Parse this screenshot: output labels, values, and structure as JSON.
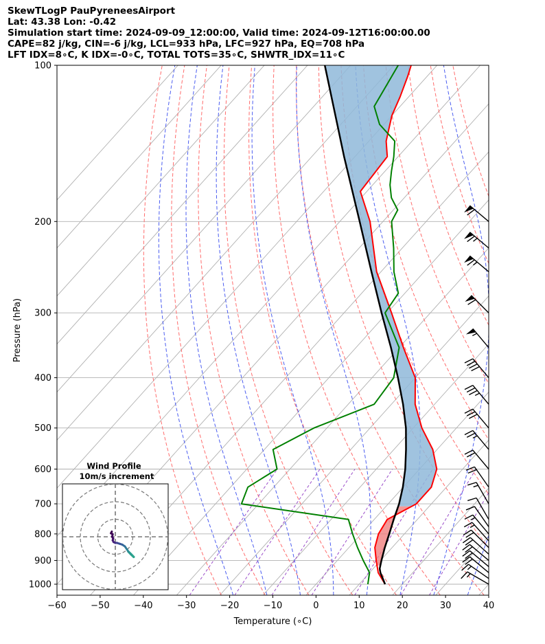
{
  "header": {
    "line1": "SkewTLogP PauPyreneesAirport",
    "line2": "Lat: 43.38   Lon: -0.42",
    "line3": "Simulation start time: 2024-09-09_12:00:00, Valid time: 2024-09-12T16:00:00.00",
    "line4": "CAPE=82 j/kg, CIN=-6 j/kg, LCL=933 hPa, LFC=927 hPa, EQ=708 hPa",
    "line5": "LFT IDX=8∘C, K IDX=-0∘C, TOTAL TOTS=35∘C, SHWTR_IDX=11∘C"
  },
  "chart_data": {
    "type": "skewt-logp",
    "xlabel": "Temperature (∘C)",
    "ylabel": "Pressure (hPa)",
    "xlim": [
      -60,
      40
    ],
    "ylim": [
      1050,
      100
    ],
    "x_ticks": [
      -60,
      -50,
      -40,
      -30,
      -20,
      -10,
      0,
      10,
      20,
      30,
      40
    ],
    "x_tick_labels": [
      "−60",
      "−50",
      "−40",
      "−30",
      "−20",
      "−10",
      "0",
      "10",
      "20",
      "30",
      "40"
    ],
    "y_ticks": [
      1000,
      900,
      800,
      700,
      600,
      500,
      400,
      300,
      200,
      100
    ],
    "y_tick_labels": [
      "1000",
      "900",
      "800",
      "700",
      "600",
      "500",
      "400",
      "300",
      "200",
      "100"
    ],
    "temperature": {
      "name": "Temperature",
      "color": "#ff0000",
      "points": [
        [
          1000,
          16
        ],
        [
          950,
          12
        ],
        [
          900,
          9
        ],
        [
          850,
          6
        ],
        [
          800,
          4
        ],
        [
          750,
          3
        ],
        [
          700,
          6.5
        ],
        [
          650,
          6.5
        ],
        [
          600,
          4
        ],
        [
          550,
          -1
        ],
        [
          500,
          -8
        ],
        [
          450,
          -14.5
        ],
        [
          400,
          -20
        ],
        [
          350,
          -29
        ],
        [
          300,
          -39
        ],
        [
          250,
          -51
        ],
        [
          200,
          -63
        ],
        [
          175,
          -71.5
        ],
        [
          150,
          -72.5
        ],
        [
          140,
          -76
        ],
        [
          125,
          -80
        ],
        [
          115,
          -82
        ],
        [
          105,
          -84.5
        ],
        [
          100,
          -86
        ]
      ]
    },
    "dewpoint": {
      "name": "Dewpoint",
      "color": "#008000",
      "points": [
        [
          1000,
          12
        ],
        [
          950,
          10
        ],
        [
          900,
          6
        ],
        [
          850,
          2
        ],
        [
          800,
          -2
        ],
        [
          750,
          -6
        ],
        [
          700,
          -34
        ],
        [
          650,
          -36
        ],
        [
          600,
          -33
        ],
        [
          550,
          -38
        ],
        [
          500,
          -33
        ],
        [
          450,
          -24
        ],
        [
          400,
          -25
        ],
        [
          350,
          -30
        ],
        [
          300,
          -40.5
        ],
        [
          275,
          -41.5
        ],
        [
          250,
          -47
        ],
        [
          225,
          -52
        ],
        [
          200,
          -58
        ],
        [
          190,
          -59
        ],
        [
          180,
          -63
        ],
        [
          170,
          -66
        ],
        [
          160,
          -68.5
        ],
        [
          150,
          -71
        ],
        [
          140,
          -74
        ],
        [
          130,
          -81
        ],
        [
          120,
          -86
        ],
        [
          100,
          -89
        ]
      ]
    },
    "parcel": {
      "name": "Parcel path",
      "color": "#000000",
      "points": [
        [
          1000,
          16
        ],
        [
          950,
          12.5
        ],
        [
          933,
          11.5
        ],
        [
          900,
          10.2
        ],
        [
          850,
          8.3
        ],
        [
          800,
          6.5
        ],
        [
          750,
          4.5
        ],
        [
          700,
          2.5
        ],
        [
          650,
          -0.1
        ],
        [
          600,
          -3.3
        ],
        [
          550,
          -7.2
        ],
        [
          500,
          -11.7
        ],
        [
          450,
          -17.3
        ],
        [
          400,
          -24
        ],
        [
          350,
          -31.9
        ],
        [
          300,
          -41.3
        ],
        [
          250,
          -52.2
        ],
        [
          200,
          -65.4
        ],
        [
          150,
          -82.5
        ],
        [
          100,
          -106
        ]
      ]
    },
    "cape_shading_color": "#8fb9d9",
    "cin_shading_color": "#f08080",
    "dry_adiabat_thetas_K": [
      250,
      260,
      270,
      280,
      290,
      300,
      310,
      320,
      330,
      340,
      350,
      360,
      370,
      380
    ],
    "moist_adiabat_start_temps_C": [
      -20,
      -12,
      -4,
      4,
      12,
      20,
      28,
      36
    ],
    "mixing_ratio_gkg": [
      0.4,
      1,
      2,
      4,
      8,
      16,
      24
    ],
    "isotherm_temps_C": [
      -140,
      -130,
      -120,
      -110,
      -100,
      -90,
      -80,
      -70,
      -60,
      -50,
      -40,
      -30,
      -20,
      -10,
      0,
      10,
      20,
      30,
      40
    ],
    "wind_barbs": [
      {
        "p": 1000,
        "speed_kt": 15,
        "dir_deg": 300
      },
      {
        "p": 975,
        "speed_kt": 15,
        "dir_deg": 305
      },
      {
        "p": 950,
        "speed_kt": 20,
        "dir_deg": 310
      },
      {
        "p": 925,
        "speed_kt": 20,
        "dir_deg": 310
      },
      {
        "p": 900,
        "speed_kt": 20,
        "dir_deg": 310
      },
      {
        "p": 875,
        "speed_kt": 20,
        "dir_deg": 312
      },
      {
        "p": 850,
        "speed_kt": 20,
        "dir_deg": 315
      },
      {
        "p": 825,
        "speed_kt": 15,
        "dir_deg": 318
      },
      {
        "p": 800,
        "speed_kt": 15,
        "dir_deg": 320
      },
      {
        "p": 775,
        "speed_kt": 10,
        "dir_deg": 325
      },
      {
        "p": 750,
        "speed_kt": 10,
        "dir_deg": 330
      },
      {
        "p": 700,
        "speed_kt": 15,
        "dir_deg": 330
      },
      {
        "p": 650,
        "speed_kt": 20,
        "dir_deg": 325
      },
      {
        "p": 600,
        "speed_kt": 20,
        "dir_deg": 320
      },
      {
        "p": 550,
        "speed_kt": 25,
        "dir_deg": 320
      },
      {
        "p": 500,
        "speed_kt": 30,
        "dir_deg": 320
      },
      {
        "p": 450,
        "speed_kt": 35,
        "dir_deg": 320
      },
      {
        "p": 400,
        "speed_kt": 40,
        "dir_deg": 320
      },
      {
        "p": 350,
        "speed_kt": 55,
        "dir_deg": 320
      },
      {
        "p": 300,
        "speed_kt": 60,
        "dir_deg": 315
      },
      {
        "p": 250,
        "speed_kt": 65,
        "dir_deg": 310
      },
      {
        "p": 225,
        "speed_kt": 65,
        "dir_deg": 310
      },
      {
        "p": 200,
        "speed_kt": 60,
        "dir_deg": 310
      }
    ],
    "hodograph": {
      "title": "Wind Profile",
      "subtitle": "10m/s increment",
      "ring_speeds": [
        10,
        20,
        30
      ],
      "points": [
        [
          10.5,
          -11.5
        ],
        [
          9,
          -10
        ],
        [
          7.5,
          -8.5
        ],
        [
          6.5,
          -7
        ],
        [
          5.5,
          -5.5
        ],
        [
          4,
          -4.5
        ],
        [
          2.5,
          -4
        ],
        [
          1,
          -3.5
        ],
        [
          0,
          -3.5
        ],
        [
          -1,
          -3
        ],
        [
          -1.5,
          -2
        ],
        [
          -1.2,
          -1
        ],
        [
          -1.8,
          0
        ],
        [
          -1.5,
          1.5
        ],
        [
          -2.5,
          2
        ],
        [
          -2,
          3
        ]
      ]
    }
  }
}
